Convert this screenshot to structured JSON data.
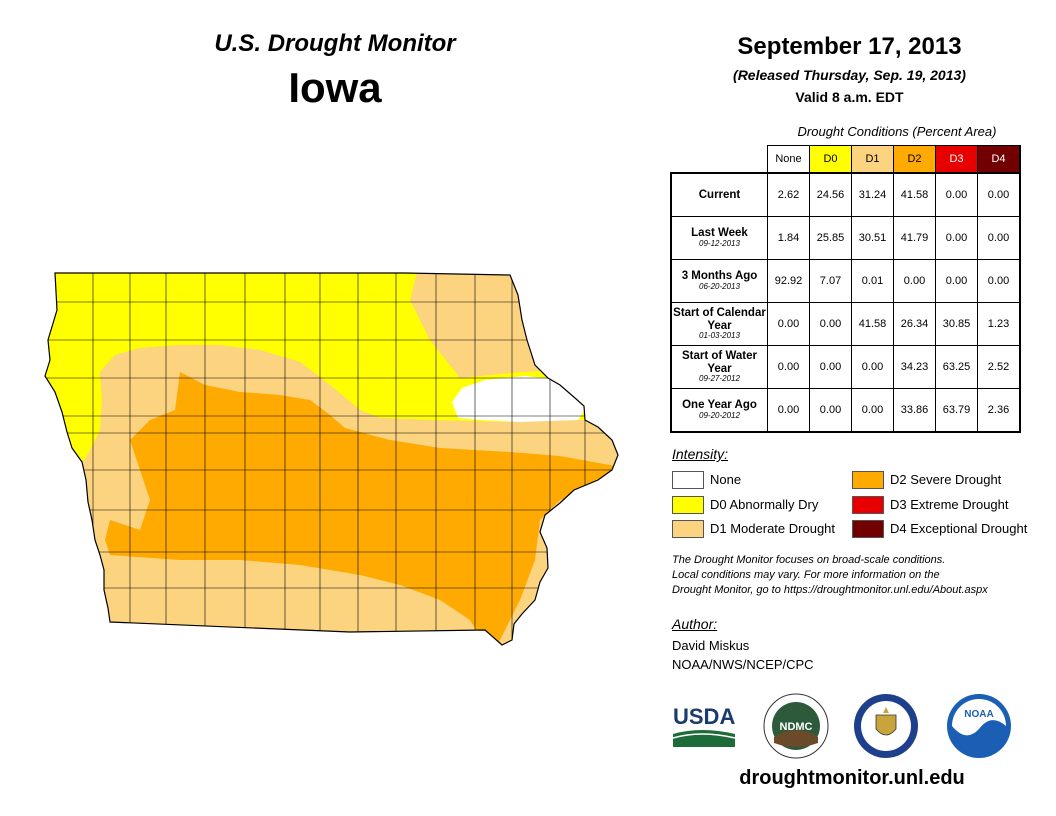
{
  "header": {
    "title": "U.S. Drought Monitor",
    "state": "Iowa",
    "date": "September 17, 2013",
    "released": "(Released Thursday, Sep. 19, 2013)",
    "valid": "Valid 8 a.m. EDT"
  },
  "conditions": {
    "caption": "Drought Conditions (Percent Area)",
    "columns": [
      {
        "label": "None",
        "color": "#ffffff",
        "text_color": "#000000"
      },
      {
        "label": "D0",
        "color": "#ffff00",
        "text_color": "#000000"
      },
      {
        "label": "D1",
        "color": "#fcd37f",
        "text_color": "#000000"
      },
      {
        "label": "D2",
        "color": "#ffaa00",
        "text_color": "#000000"
      },
      {
        "label": "D3",
        "color": "#e60000",
        "text_color": "#ffffff"
      },
      {
        "label": "D4",
        "color": "#730000",
        "text_color": "#ffffff"
      }
    ],
    "rows": [
      {
        "label": "Current",
        "date": "",
        "values": [
          "2.62",
          "24.56",
          "31.24",
          "41.58",
          "0.00",
          "0.00"
        ]
      },
      {
        "label": "Last Week",
        "date": "09-12-2013",
        "values": [
          "1.84",
          "25.85",
          "30.51",
          "41.79",
          "0.00",
          "0.00"
        ]
      },
      {
        "label": "3 Months Ago",
        "date": "06-20-2013",
        "values": [
          "92.92",
          "7.07",
          "0.01",
          "0.00",
          "0.00",
          "0.00"
        ]
      },
      {
        "label": "Start of Calendar Year",
        "date": "01-03-2013",
        "values": [
          "0.00",
          "0.00",
          "41.58",
          "26.34",
          "30.85",
          "1.23"
        ]
      },
      {
        "label": "Start of Water Year",
        "date": "09-27-2012",
        "values": [
          "0.00",
          "0.00",
          "0.00",
          "34.23",
          "63.25",
          "2.52"
        ]
      },
      {
        "label": "One Year Ago",
        "date": "09-20-2012",
        "values": [
          "0.00",
          "0.00",
          "0.00",
          "33.86",
          "63.79",
          "2.36"
        ]
      }
    ]
  },
  "legend": {
    "title": "Intensity:",
    "items": [
      {
        "label": "None",
        "color": "#ffffff"
      },
      {
        "label": "D0 Abnormally Dry",
        "color": "#ffff00"
      },
      {
        "label": "D1 Moderate Drought",
        "color": "#fcd37f"
      },
      {
        "label": "D2 Severe Drought",
        "color": "#ffaa00"
      },
      {
        "label": "D3 Extreme Drought",
        "color": "#e60000"
      },
      {
        "label": "D4 Exceptional Drought",
        "color": "#730000"
      }
    ]
  },
  "note": {
    "line1": "The Drought Monitor focuses on broad-scale conditions.",
    "line2": "Local conditions may vary. For more information on the",
    "line3": "Drought Monitor, go to https://droughtmonitor.unl.edu/About.aspx"
  },
  "author": {
    "title": "Author:",
    "name": "David Miskus",
    "org": "NOAA/NWS/NCEP/CPC"
  },
  "logos": {
    "usda": "USDA",
    "ndmc": "NDMC",
    "noaa": "NOAA"
  },
  "url": "droughtmonitor.unl.edu"
}
